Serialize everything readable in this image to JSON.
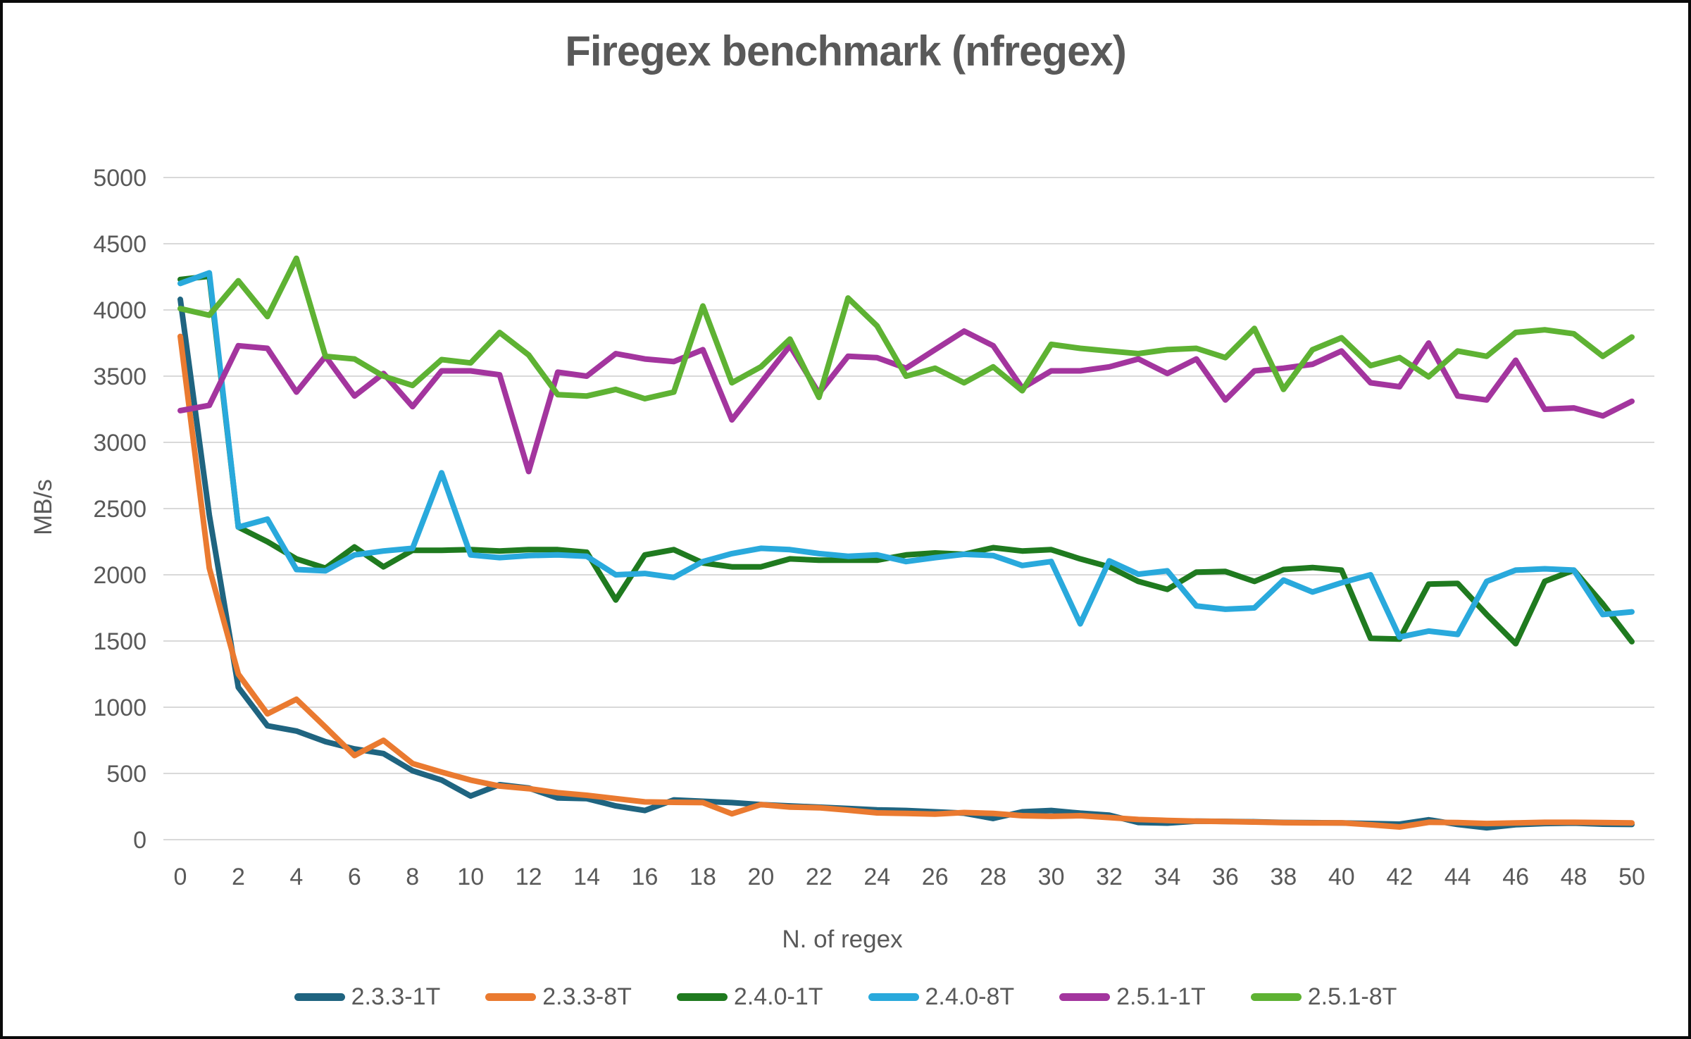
{
  "title": "Firegex benchmark (nfregex)",
  "y_axis": {
    "title": "MB/s",
    "ticks": [
      0,
      500,
      1000,
      1500,
      2000,
      2500,
      3000,
      3500,
      4000,
      4500,
      5000
    ]
  },
  "x_axis": {
    "title": "N. of regex",
    "ticks": [
      0,
      2,
      4,
      6,
      8,
      10,
      12,
      14,
      16,
      18,
      20,
      22,
      24,
      26,
      28,
      30,
      32,
      34,
      36,
      38,
      40,
      42,
      44,
      46,
      48,
      50
    ]
  },
  "chart_data": {
    "type": "line",
    "title": "Firegex benchmark (nfregex)",
    "xlabel": "N. of regex",
    "ylabel": "MB/s",
    "x_range": [
      0,
      50
    ],
    "ylim": [
      0,
      5000
    ],
    "grid": "horizontal",
    "legend_position": "bottom",
    "x": [
      0,
      1,
      2,
      3,
      4,
      5,
      6,
      7,
      8,
      9,
      10,
      11,
      12,
      13,
      14,
      15,
      16,
      17,
      18,
      19,
      20,
      21,
      22,
      23,
      24,
      25,
      26,
      27,
      28,
      29,
      30,
      31,
      32,
      33,
      34,
      35,
      36,
      37,
      38,
      39,
      40,
      41,
      42,
      43,
      44,
      45,
      46,
      47,
      48,
      49,
      50
    ],
    "series": [
      {
        "name": "2.3.3-1T",
        "color": "#1f6480",
        "values": [
          4080,
          2450,
          1150,
          860,
          820,
          740,
          685,
          650,
          520,
          450,
          330,
          415,
          390,
          315,
          310,
          255,
          220,
          300,
          290,
          280,
          265,
          255,
          245,
          235,
          225,
          220,
          210,
          200,
          160,
          210,
          220,
          200,
          185,
          130,
          125,
          140,
          138,
          135,
          130,
          128,
          126,
          122,
          117,
          150,
          115,
          90,
          113,
          122,
          125,
          117,
          115
        ]
      },
      {
        "name": "2.3.3-8T",
        "color": "#ea7a30",
        "values": [
          3800,
          2050,
          1250,
          950,
          1060,
          850,
          635,
          750,
          575,
          510,
          450,
          405,
          385,
          355,
          335,
          310,
          285,
          282,
          280,
          195,
          265,
          246,
          241,
          223,
          202,
          198,
          193,
          205,
          198,
          181,
          176,
          181,
          167,
          152,
          145,
          140,
          137,
          133,
          128,
          126,
          127,
          112,
          96,
          131,
          129,
          122,
          126,
          131,
          131,
          129,
          126
        ]
      },
      {
        "name": "2.4.0-1T",
        "color": "#1f7a1f",
        "values": [
          4230,
          4255,
          2360,
          2250,
          2120,
          2050,
          2210,
          2060,
          2185,
          2185,
          2190,
          2180,
          2190,
          2190,
          2170,
          1810,
          2150,
          2190,
          2090,
          2060,
          2060,
          2120,
          2110,
          2110,
          2110,
          2150,
          2165,
          2155,
          2205,
          2180,
          2190,
          2120,
          2060,
          1950,
          1890,
          2020,
          2025,
          1950,
          2040,
          2055,
          2035,
          1520,
          1515,
          1930,
          1935,
          1700,
          1480,
          1950,
          2035,
          1780,
          1495
        ]
      },
      {
        "name": "2.4.0-8T",
        "color": "#29a9dc",
        "values": [
          4200,
          4280,
          2360,
          2420,
          2040,
          2030,
          2150,
          2180,
          2200,
          2770,
          2150,
          2130,
          2145,
          2150,
          2140,
          2000,
          2010,
          1980,
          2100,
          2160,
          2200,
          2190,
          2160,
          2140,
          2150,
          2100,
          2130,
          2155,
          2145,
          2070,
          2100,
          1630,
          2105,
          2005,
          2030,
          1765,
          1740,
          1750,
          1960,
          1870,
          1940,
          2000,
          1530,
          1575,
          1550,
          1950,
          2035,
          2045,
          2035,
          1700,
          1720
        ]
      },
      {
        "name": "2.5.1-1T",
        "color": "#a3359e",
        "values": [
          3240,
          3280,
          3730,
          3710,
          3380,
          3650,
          3350,
          3520,
          3270,
          3540,
          3540,
          3510,
          2780,
          3530,
          3500,
          3670,
          3630,
          3610,
          3700,
          3170,
          3450,
          3730,
          3370,
          3650,
          3640,
          3560,
          3700,
          3840,
          3730,
          3410,
          3540,
          3540,
          3570,
          3630,
          3520,
          3630,
          3320,
          3540,
          3560,
          3590,
          3690,
          3450,
          3420,
          3750,
          3350,
          3320,
          3620,
          3250,
          3260,
          3200,
          3310
        ]
      },
      {
        "name": "2.5.1-8T",
        "color": "#5eb233",
        "values": [
          4010,
          3960,
          4220,
          3950,
          4390,
          3650,
          3630,
          3500,
          3430,
          3625,
          3600,
          3830,
          3660,
          3360,
          3350,
          3400,
          3330,
          3380,
          4030,
          3450,
          3570,
          3780,
          3340,
          4090,
          3880,
          3500,
          3560,
          3450,
          3570,
          3390,
          3740,
          3710,
          3690,
          3670,
          3700,
          3710,
          3640,
          3860,
          3400,
          3700,
          3790,
          3580,
          3640,
          3495,
          3690,
          3650,
          3830,
          3850,
          3820,
          3650,
          3795
        ]
      }
    ]
  }
}
